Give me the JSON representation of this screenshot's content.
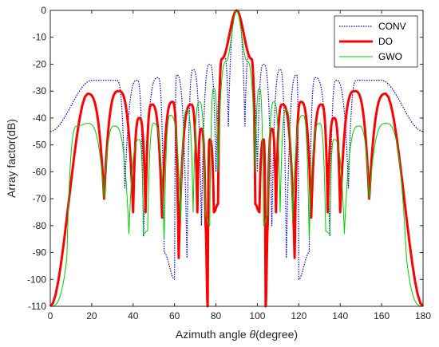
{
  "chart_data": {
    "type": "line",
    "xlabel_prefix": "Azimuth angle ",
    "xlabel_symbol": "θ",
    "xlabel_suffix": "(degree)",
    "ylabel": "Array factor(dB)",
    "xlim": [
      0,
      180
    ],
    "ylim": [
      -110,
      0
    ],
    "xticks": [
      "0",
      "20",
      "40",
      "60",
      "80",
      "100",
      "120",
      "140",
      "160",
      "180"
    ],
    "yticks": [
      "0",
      "-10",
      "-20",
      "-30",
      "-40",
      "-50",
      "-60",
      "-70",
      "-80",
      "-90",
      "-100",
      "-110"
    ],
    "grid": false,
    "legend_position": "top-right",
    "series": [
      {
        "name": "CONV",
        "color": "#0000cc",
        "style": "dotted",
        "peaks": [
          [
            0,
            -45
          ],
          [
            20,
            -26
          ],
          [
            32,
            -26
          ],
          [
            42,
            -26
          ],
          [
            52,
            -25
          ],
          [
            61,
            -24
          ],
          [
            69,
            -22
          ],
          [
            77,
            -20
          ],
          [
            84,
            -17
          ],
          [
            90,
            0
          ],
          [
            96,
            -17
          ],
          [
            103,
            -20
          ],
          [
            111,
            -22
          ],
          [
            119,
            -24
          ],
          [
            128,
            -25
          ],
          [
            138,
            -26
          ],
          [
            148,
            -26
          ],
          [
            160,
            -26
          ],
          [
            180,
            -45
          ]
        ],
        "nulls": [
          [
            36,
            -66
          ],
          [
            45,
            -84
          ],
          [
            55,
            -90
          ],
          [
            60,
            -100
          ],
          [
            66,
            -92
          ],
          [
            73,
            -80
          ],
          [
            80,
            -60
          ],
          [
            86,
            -43
          ],
          [
            94,
            -43
          ],
          [
            100,
            -60
          ],
          [
            107,
            -80
          ],
          [
            114,
            -92
          ],
          [
            120,
            -100
          ],
          [
            125,
            -90
          ],
          [
            135,
            -84
          ],
          [
            144,
            -66
          ]
        ]
      },
      {
        "name": "DO",
        "color": "#ff0000",
        "style": "solid",
        "width": 3,
        "peaks": [
          [
            0,
            -110
          ],
          [
            18,
            -31
          ],
          [
            33,
            -30
          ],
          [
            43,
            -40
          ],
          [
            49,
            -35
          ],
          [
            59,
            -34
          ],
          [
            68,
            -35
          ],
          [
            73,
            -44
          ],
          [
            77,
            -48
          ],
          [
            83,
            -18
          ],
          [
            90,
            0
          ],
          [
            97,
            -18
          ],
          [
            103,
            -48
          ],
          [
            107,
            -44
          ],
          [
            112,
            -35
          ],
          [
            121,
            -34
          ],
          [
            131,
            -35
          ],
          [
            137,
            -40
          ],
          [
            147,
            -30
          ],
          [
            162,
            -31
          ],
          [
            180,
            -110
          ]
        ],
        "nulls": [
          [
            26,
            -70
          ],
          [
            40,
            -75
          ],
          [
            46,
            -75
          ],
          [
            54,
            -77
          ],
          [
            62,
            -92
          ],
          [
            71,
            -75
          ],
          [
            75,
            -80
          ],
          [
            76,
            -110
          ],
          [
            79,
            -75
          ],
          [
            81,
            -72
          ],
          [
            99,
            -72
          ],
          [
            101,
            -75
          ],
          [
            104,
            -110
          ],
          [
            105,
            -80
          ],
          [
            109,
            -75
          ],
          [
            118,
            -92
          ],
          [
            126,
            -77
          ],
          [
            134,
            -75
          ],
          [
            140,
            -75
          ],
          [
            154,
            -70
          ]
        ]
      },
      {
        "name": "GWO",
        "color": "#00cc00",
        "style": "solid",
        "peaks": [
          [
            0,
            -110
          ],
          [
            13,
            -43
          ],
          [
            18,
            -42
          ],
          [
            31,
            -43
          ],
          [
            43,
            -48
          ],
          [
            50,
            -42
          ],
          [
            58,
            -39
          ],
          [
            66,
            -37
          ],
          [
            72,
            -34
          ],
          [
            79,
            -29
          ],
          [
            85,
            -19
          ],
          [
            90,
            0
          ],
          [
            95,
            -19
          ],
          [
            101,
            -29
          ],
          [
            108,
            -34
          ],
          [
            114,
            -37
          ],
          [
            122,
            -39
          ],
          [
            130,
            -42
          ],
          [
            137,
            -48
          ],
          [
            149,
            -43
          ],
          [
            162,
            -42
          ],
          [
            180,
            -110
          ]
        ],
        "nulls": [
          [
            8,
            -92
          ],
          [
            26,
            -70
          ],
          [
            38,
            -83
          ],
          [
            45,
            -83
          ],
          [
            47,
            -82
          ],
          [
            55,
            -85
          ],
          [
            63,
            -78
          ],
          [
            69,
            -75
          ],
          [
            75,
            -76
          ],
          [
            77,
            -80
          ],
          [
            81,
            -60
          ],
          [
            99,
            -60
          ],
          [
            103,
            -80
          ],
          [
            105,
            -76
          ],
          [
            111,
            -75
          ],
          [
            117,
            -78
          ],
          [
            125,
            -85
          ],
          [
            133,
            -82
          ],
          [
            135,
            -83
          ],
          [
            142,
            -83
          ],
          [
            154,
            -70
          ],
          [
            172,
            -92
          ]
        ]
      }
    ]
  }
}
